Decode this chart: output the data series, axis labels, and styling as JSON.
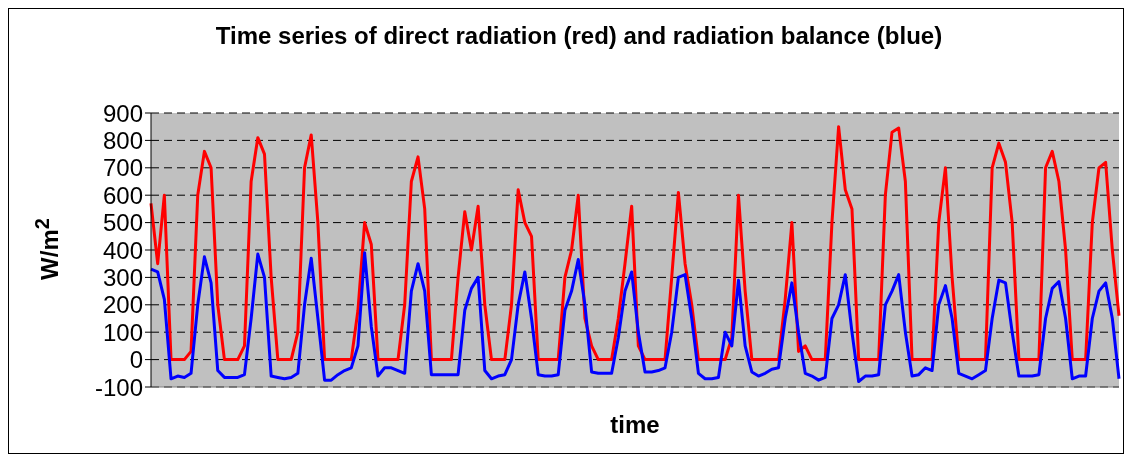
{
  "chart_data": {
    "type": "line",
    "title": "Time series of direct radiation (red) and radiation balance (blue)",
    "xlabel": "time",
    "ylabel": "W/m$^{2}$",
    "ylim": [
      -100,
      900
    ],
    "yticks": [
      -100,
      0,
      100,
      200,
      300,
      400,
      500,
      600,
      700,
      800,
      900
    ],
    "grid": "y",
    "categories": [
      null,
      null,
      null,
      null,
      null,
      null,
      null,
      null,
      null,
      null,
      null,
      null,
      null,
      null,
      null,
      null,
      null,
      null,
      null,
      null,
      null,
      null,
      null,
      null,
      null,
      null,
      null,
      null,
      null,
      null,
      null,
      null,
      null,
      null,
      null,
      null,
      null,
      null,
      null,
      null,
      null,
      null,
      null,
      null,
      null,
      null,
      null,
      null,
      null,
      null,
      null,
      null,
      null,
      null,
      null,
      null,
      null,
      null,
      null,
      null,
      null,
      null,
      null,
      null,
      null,
      null,
      null,
      null,
      null,
      null,
      null,
      null,
      null,
      null,
      null,
      null,
      null,
      null,
      null,
      null,
      null,
      null,
      null,
      null,
      null,
      null,
      null,
      null,
      null,
      null,
      null,
      null,
      null,
      null,
      null,
      null,
      null,
      null,
      null,
      null,
      null,
      null,
      null,
      null,
      null,
      null,
      null,
      null,
      null,
      null,
      null,
      null,
      null,
      null,
      null,
      null,
      null,
      null,
      null,
      null,
      null,
      null,
      null,
      null,
      null,
      null,
      null,
      null,
      null,
      null,
      null,
      null,
      null,
      null,
      null,
      null,
      null,
      null,
      null,
      null,
      null,
      null,
      null,
      null,
      null,
      null
    ],
    "series": [
      {
        "color": "#ff0000",
        "values": [
          570,
          350,
          600,
          0,
          0,
          0,
          30,
          600,
          760,
          700,
          200,
          0,
          0,
          0,
          50,
          650,
          810,
          750,
          300,
          0,
          0,
          0,
          100,
          700,
          820,
          500,
          0,
          0,
          0,
          0,
          0,
          180,
          500,
          420,
          0,
          0,
          0,
          0,
          200,
          650,
          740,
          550,
          0,
          0,
          0,
          0,
          300,
          540,
          400,
          560,
          200,
          0,
          0,
          0,
          200,
          620,
          500,
          450,
          0,
          0,
          0,
          0,
          300,
          400,
          600,
          150,
          50,
          0,
          0,
          0,
          150,
          350,
          560,
          50,
          0,
          0,
          0,
          0,
          300,
          610,
          350,
          200,
          0,
          0,
          0,
          0,
          0,
          80,
          600,
          250,
          0,
          0,
          0,
          0,
          0,
          220,
          500,
          30,
          50,
          0,
          0,
          0,
          500,
          850,
          620,
          550,
          0,
          0,
          0,
          0,
          600,
          830,
          845,
          650,
          0,
          0,
          0,
          0,
          500,
          700,
          300,
          0,
          0,
          0,
          0,
          0,
          700,
          790,
          720,
          500,
          0,
          0,
          0,
          0,
          700,
          760,
          650,
          400,
          0,
          0,
          0,
          500,
          700,
          720,
          400,
          160
        ]
      },
      {
        "color": "#0000ff",
        "values": [
          330,
          320,
          220,
          -70,
          -60,
          -65,
          -50,
          200,
          375,
          280,
          -40,
          -65,
          -65,
          -65,
          -55,
          150,
          385,
          300,
          -60,
          -65,
          -70,
          -65,
          -50,
          200,
          370,
          150,
          -75,
          -75,
          -55,
          -40,
          -30,
          50,
          390,
          120,
          -60,
          -30,
          -30,
          -40,
          -50,
          250,
          350,
          250,
          -55,
          -55,
          -55,
          -55,
          -55,
          180,
          260,
          300,
          -40,
          -70,
          -60,
          -55,
          0,
          200,
          320,
          150,
          -55,
          -60,
          -60,
          -55,
          180,
          250,
          365,
          200,
          -45,
          -50,
          -50,
          -50,
          80,
          250,
          320,
          100,
          -45,
          -45,
          -40,
          -30,
          100,
          300,
          310,
          150,
          -50,
          -70,
          -70,
          -65,
          100,
          50,
          290,
          50,
          -45,
          -60,
          -50,
          -35,
          -30,
          150,
          280,
          100,
          -50,
          -60,
          -75,
          -65,
          150,
          200,
          310,
          100,
          -80,
          -60,
          -60,
          -55,
          200,
          250,
          310,
          100,
          -60,
          -55,
          -30,
          -40,
          200,
          270,
          150,
          -50,
          -60,
          -70,
          -55,
          -40,
          150,
          290,
          280,
          100,
          -60,
          -60,
          -60,
          -55,
          150,
          260,
          285,
          150,
          -70,
          -60,
          -60,
          150,
          250,
          280,
          150,
          -70
        ]
      }
    ]
  }
}
